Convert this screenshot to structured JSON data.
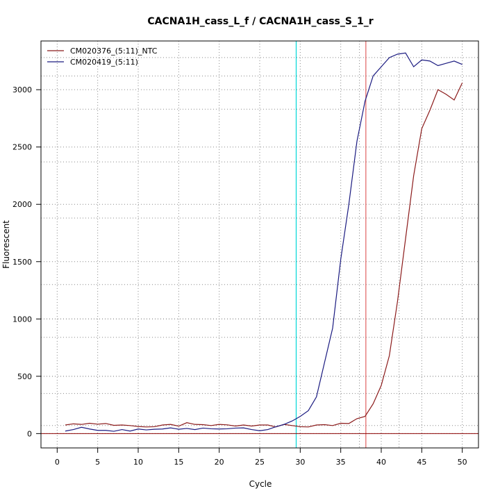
{
  "chart_data": {
    "type": "line",
    "title": "CACNA1H_cass_L_f / CACNA1H_cass_S_1_r",
    "xlabel": "Cycle",
    "ylabel": "Fluorescent",
    "xlim": [
      -2,
      52
    ],
    "ylim": [
      -125,
      3425
    ],
    "xticks": [
      0,
      5,
      10,
      15,
      20,
      25,
      30,
      35,
      40,
      45,
      50
    ],
    "yticks": [
      0,
      500,
      1000,
      1500,
      2000,
      2500,
      3000
    ],
    "grid": true,
    "legend_position": "top-left",
    "threshold_y": 0,
    "vlines": [
      {
        "x": 29.5,
        "color": "#00d8d8"
      },
      {
        "x": 38.1,
        "color": "#e06060"
      }
    ],
    "vgrid_extra": [
      37.3,
      42.2
    ],
    "hgrid_extra": [
      3280,
      3120,
      2830,
      2370,
      1880,
      1300,
      1000,
      840,
      500,
      350,
      70
    ],
    "x": [
      1,
      2,
      3,
      4,
      5,
      6,
      7,
      8,
      9,
      10,
      11,
      12,
      13,
      14,
      15,
      16,
      17,
      18,
      19,
      20,
      21,
      22,
      23,
      24,
      25,
      26,
      27,
      28,
      29,
      30,
      31,
      32,
      33,
      34,
      35,
      36,
      37,
      38,
      39,
      40,
      41,
      42,
      43,
      44,
      45,
      46,
      47,
      48,
      49,
      50
    ],
    "series": [
      {
        "name": "CM020376_(5:11)_NTC",
        "color": "#8b1a1a",
        "values": [
          75,
          85,
          80,
          90,
          82,
          88,
          72,
          75,
          70,
          62,
          58,
          60,
          75,
          80,
          65,
          95,
          80,
          78,
          70,
          80,
          76,
          66,
          75,
          66,
          75,
          75,
          58,
          80,
          70,
          60,
          58,
          75,
          78,
          70,
          90,
          88,
          130,
          150,
          260,
          420,
          680,
          1150,
          1700,
          2250,
          2660,
          2820,
          3000,
          2960,
          2910,
          3060
        ]
      },
      {
        "name": "CM020419_(5:11)",
        "color": "#1a1a80",
        "values": [
          22,
          35,
          55,
          40,
          28,
          28,
          20,
          35,
          22,
          40,
          32,
          38,
          40,
          50,
          38,
          45,
          35,
          48,
          42,
          40,
          42,
          48,
          50,
          35,
          25,
          35,
          60,
          80,
          110,
          150,
          200,
          320,
          620,
          920,
          1520,
          2000,
          2550,
          2900,
          3120,
          3200,
          3280,
          3310,
          3320,
          3200,
          3260,
          3250,
          3210,
          3230,
          3250,
          3220
        ]
      }
    ]
  }
}
